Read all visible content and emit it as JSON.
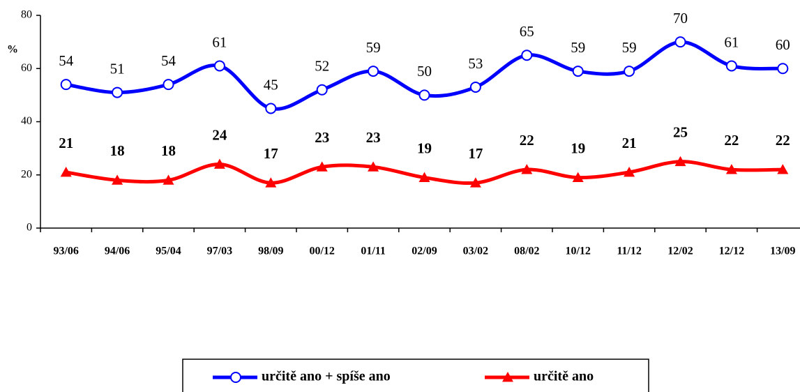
{
  "chart_data": {
    "type": "line",
    "y_label": "%",
    "categories": [
      "93/06",
      "94/06",
      "95/04",
      "97/03",
      "98/09",
      "00/12",
      "01/11",
      "02/09",
      "03/02",
      "08/02",
      "10/12",
      "11/12",
      "12/02",
      "12/12",
      "13/09"
    ],
    "series": [
      {
        "name": "určitě ano + spíše ano",
        "color": "#0000ff",
        "values": [
          54,
          51,
          54,
          61,
          45,
          52,
          59,
          50,
          53,
          65,
          59,
          59,
          70,
          61,
          60
        ]
      },
      {
        "name": "určitě ano",
        "color": "#ff0000",
        "values": [
          21,
          18,
          18,
          24,
          17,
          23,
          23,
          19,
          17,
          22,
          19,
          21,
          25,
          22,
          22
        ]
      }
    ],
    "ylim": [
      0,
      80
    ],
    "yticks": [
      0,
      20,
      40,
      60,
      80
    ]
  }
}
